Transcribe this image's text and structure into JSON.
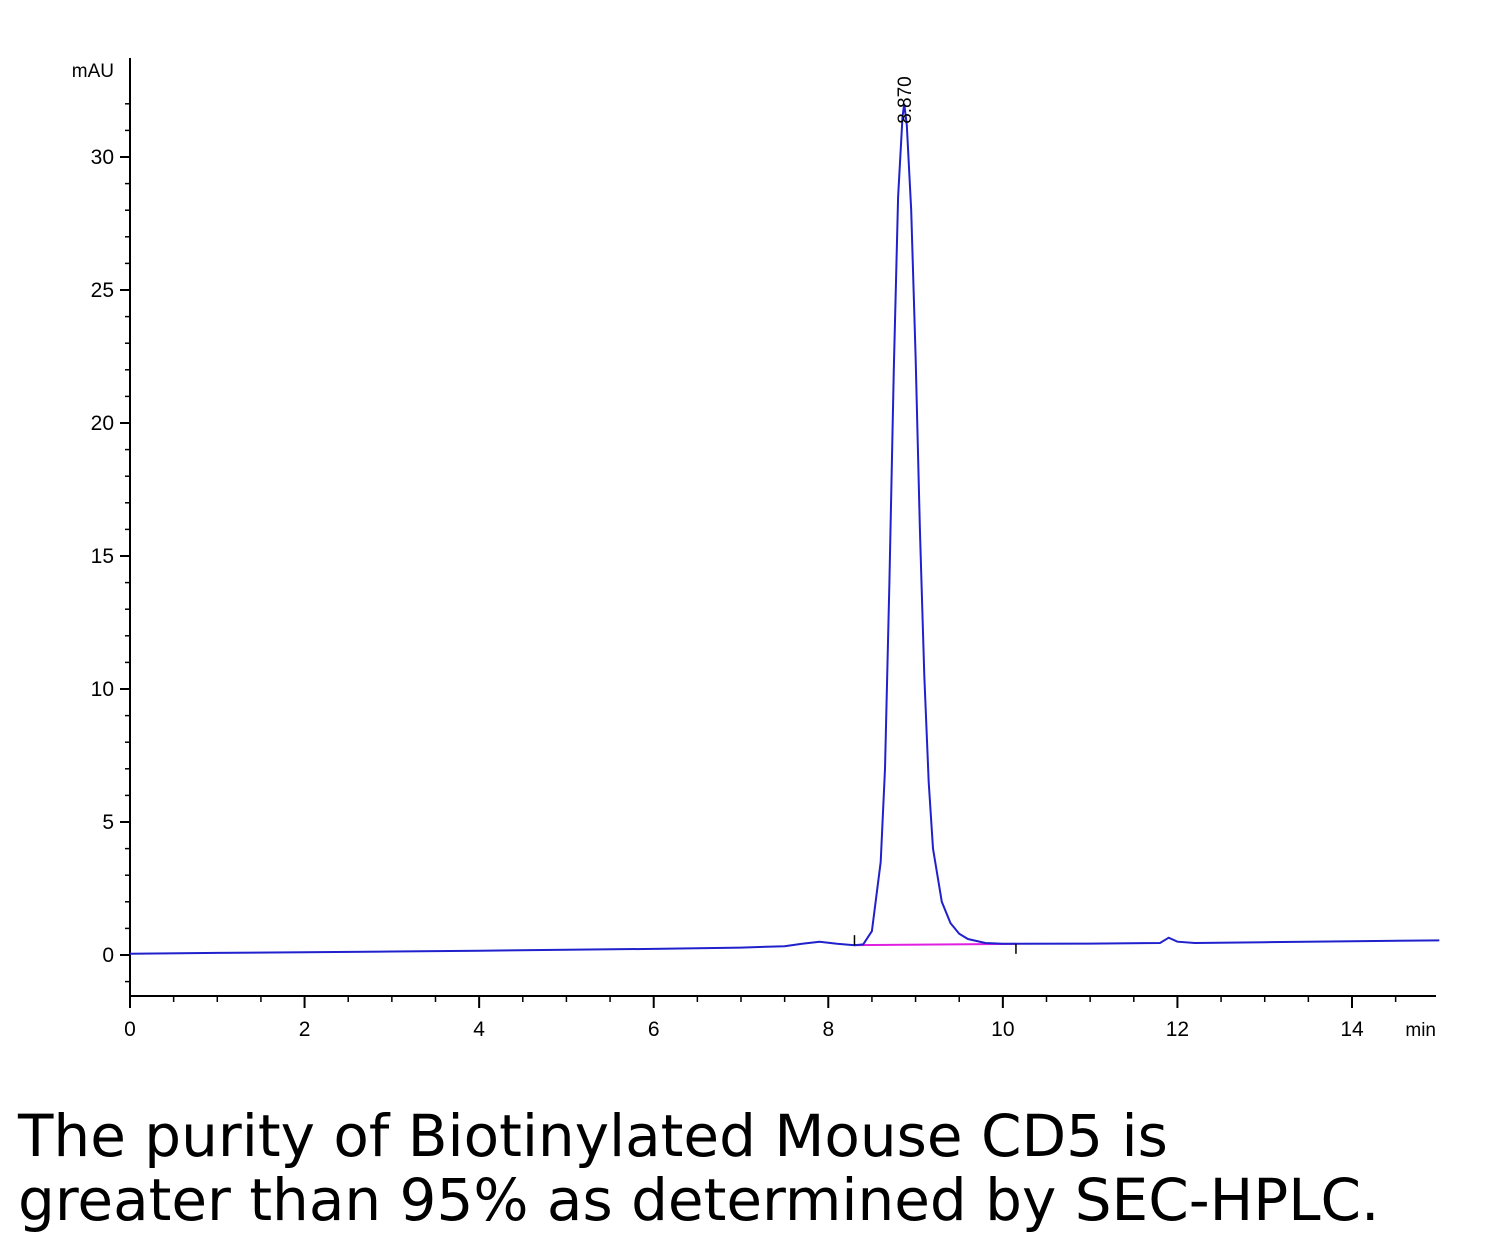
{
  "chart_data": {
    "type": "line",
    "ylabel": "mAU",
    "xlabel": "min",
    "xlim": [
      0,
      15
    ],
    "ylim": [
      -1.5,
      33
    ],
    "x_ticks": [
      0,
      2,
      4,
      6,
      8,
      10,
      12,
      14
    ],
    "y_ticks": [
      0,
      5,
      10,
      15,
      20,
      25,
      30
    ],
    "grid": false,
    "series": [
      {
        "color": "#2020cc",
        "x": [
          0,
          1,
          2,
          3,
          4,
          5,
          6,
          7,
          7.5,
          7.7,
          7.9,
          8.1,
          8.3,
          8.4,
          8.5,
          8.6,
          8.65,
          8.7,
          8.75,
          8.8,
          8.85,
          8.87,
          8.9,
          8.95,
          9.0,
          9.05,
          9.1,
          9.15,
          9.2,
          9.3,
          9.4,
          9.5,
          9.6,
          9.8,
          10.0,
          11.0,
          11.8,
          11.9,
          12.0,
          12.2,
          13.0,
          14.0,
          15.0
        ],
        "y": [
          0.05,
          0.08,
          0.1,
          0.13,
          0.16,
          0.2,
          0.23,
          0.28,
          0.33,
          0.42,
          0.5,
          0.42,
          0.37,
          0.4,
          0.9,
          3.5,
          7.0,
          14.0,
          22.0,
          28.5,
          31.5,
          32.0,
          31.2,
          28.0,
          22.5,
          16.0,
          10.5,
          6.5,
          4.0,
          2.0,
          1.2,
          0.8,
          0.6,
          0.45,
          0.42,
          0.43,
          0.45,
          0.65,
          0.5,
          0.45,
          0.48,
          0.52,
          0.55
        ]
      }
    ],
    "baseline": {
      "color": "#e020e0",
      "x": [
        8.3,
        10.15
      ],
      "y": [
        0.37,
        0.42
      ]
    },
    "peak_annotations": [
      {
        "x": 8.87,
        "y": 32.0,
        "label": "8.870"
      }
    ]
  },
  "caption": {
    "line1": "The purity of Biotinylated Mouse CD5 is",
    "line2": "greater than 95% as determined by SEC-HPLC."
  }
}
